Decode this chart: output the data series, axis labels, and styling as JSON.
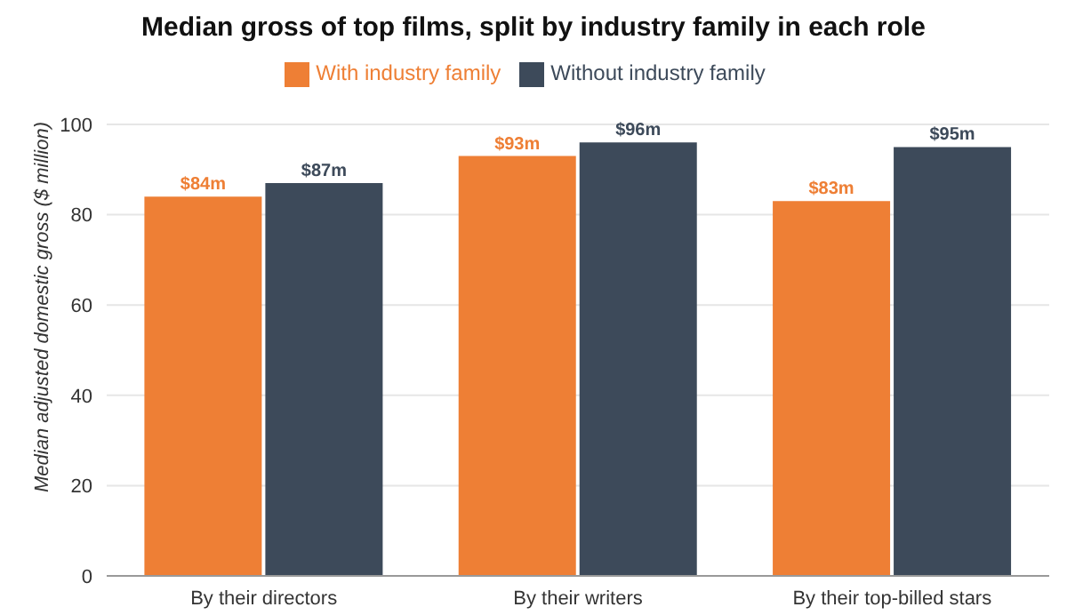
{
  "chart_data": {
    "type": "bar",
    "title": "Median gross of top films, split by industry family in each role",
    "ylabel": "Median adjusted domestic gross ($ million)",
    "categories": [
      "By their directors",
      "By their writers",
      "By their top-billed stars"
    ],
    "series": [
      {
        "name": "With industry family",
        "color": "#ee7f35",
        "values": [
          84,
          93,
          83
        ],
        "value_labels": [
          "$84m",
          "$93m",
          "$83m"
        ]
      },
      {
        "name": "Without industry family",
        "color": "#3d4a5a",
        "values": [
          87,
          96,
          95
        ],
        "value_labels": [
          "$87m",
          "$96m",
          "$95m"
        ]
      }
    ],
    "ylim": [
      0,
      100
    ],
    "yticks": [
      0,
      20,
      40,
      60,
      80,
      100
    ],
    "grid": "y",
    "legend": "top"
  }
}
